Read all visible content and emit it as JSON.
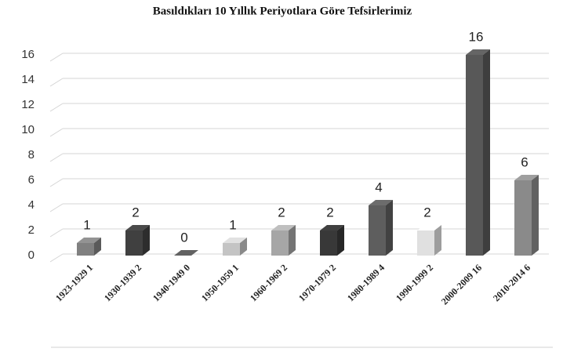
{
  "chart_data": {
    "type": "bar3d",
    "title": "Basıldıkları 10 Yıllık Periyotlara Göre Tefsirlerimiz",
    "categories": [
      "1923-1929 1",
      "1930-1939 2",
      "1940-1949 0",
      "1950-1959 1",
      "1960-1969 2",
      "1970-1979 2",
      "1980-1989 4",
      "1990-1999 2",
      "2000-2009 16",
      "2010-2014 6"
    ],
    "values": [
      1,
      2,
      0,
      1,
      2,
      2,
      4,
      2,
      16,
      6
    ],
    "colors": [
      "#808080",
      "#404040",
      "#555555",
      "#c4c4c4",
      "#a6a6a6",
      "#383838",
      "#5e5e5e",
      "#e0e0e0",
      "#585858",
      "#8a8a8a"
    ],
    "ylim": [
      0,
      16
    ],
    "yticks": [
      0,
      2,
      4,
      6,
      8,
      10,
      12,
      14,
      16
    ],
    "grid": true
  }
}
